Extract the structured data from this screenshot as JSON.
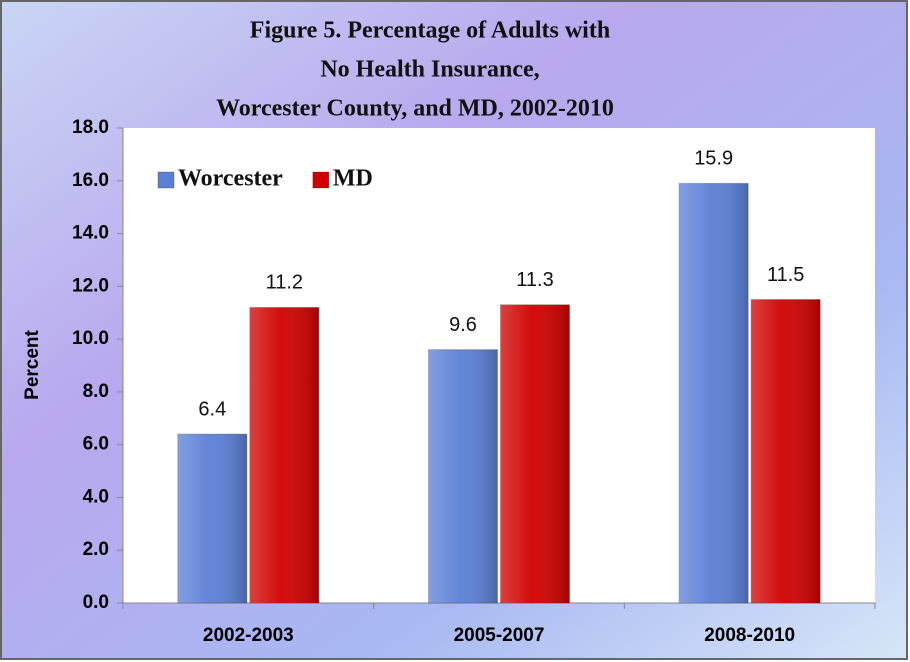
{
  "chart_data": {
    "type": "bar",
    "title": [
      "Figure 5. Percentage of Adults with",
      "No Health Insurance,",
      "Worcester County, and MD, 2002-2010"
    ],
    "y_label": "Percent",
    "categories": [
      "2002-2003",
      "2005-2007",
      "2008-2010"
    ],
    "series": [
      {
        "name": "Worcester",
        "color": "#5b7fd6",
        "values": [
          6.4,
          9.6,
          15.9
        ]
      },
      {
        "name": "MD",
        "color": "#d00000",
        "values": [
          11.2,
          11.3,
          11.5
        ]
      }
    ],
    "ylim": [
      0,
      18
    ],
    "yticks": [
      {
        "value": 0,
        "label": "0.0"
      },
      {
        "value": 2,
        "label": "2.0"
      },
      {
        "value": 4,
        "label": "4.0"
      },
      {
        "value": 6,
        "label": "6.0"
      },
      {
        "value": 8,
        "label": "8.0"
      },
      {
        "value": 10,
        "label": "10.0"
      },
      {
        "value": 12,
        "label": "12.0"
      },
      {
        "value": 14,
        "label": "14.0"
      },
      {
        "value": 16,
        "label": "16.0"
      },
      {
        "value": 18,
        "label": "18.0"
      }
    ],
    "legend": "top-left",
    "grid": false
  }
}
